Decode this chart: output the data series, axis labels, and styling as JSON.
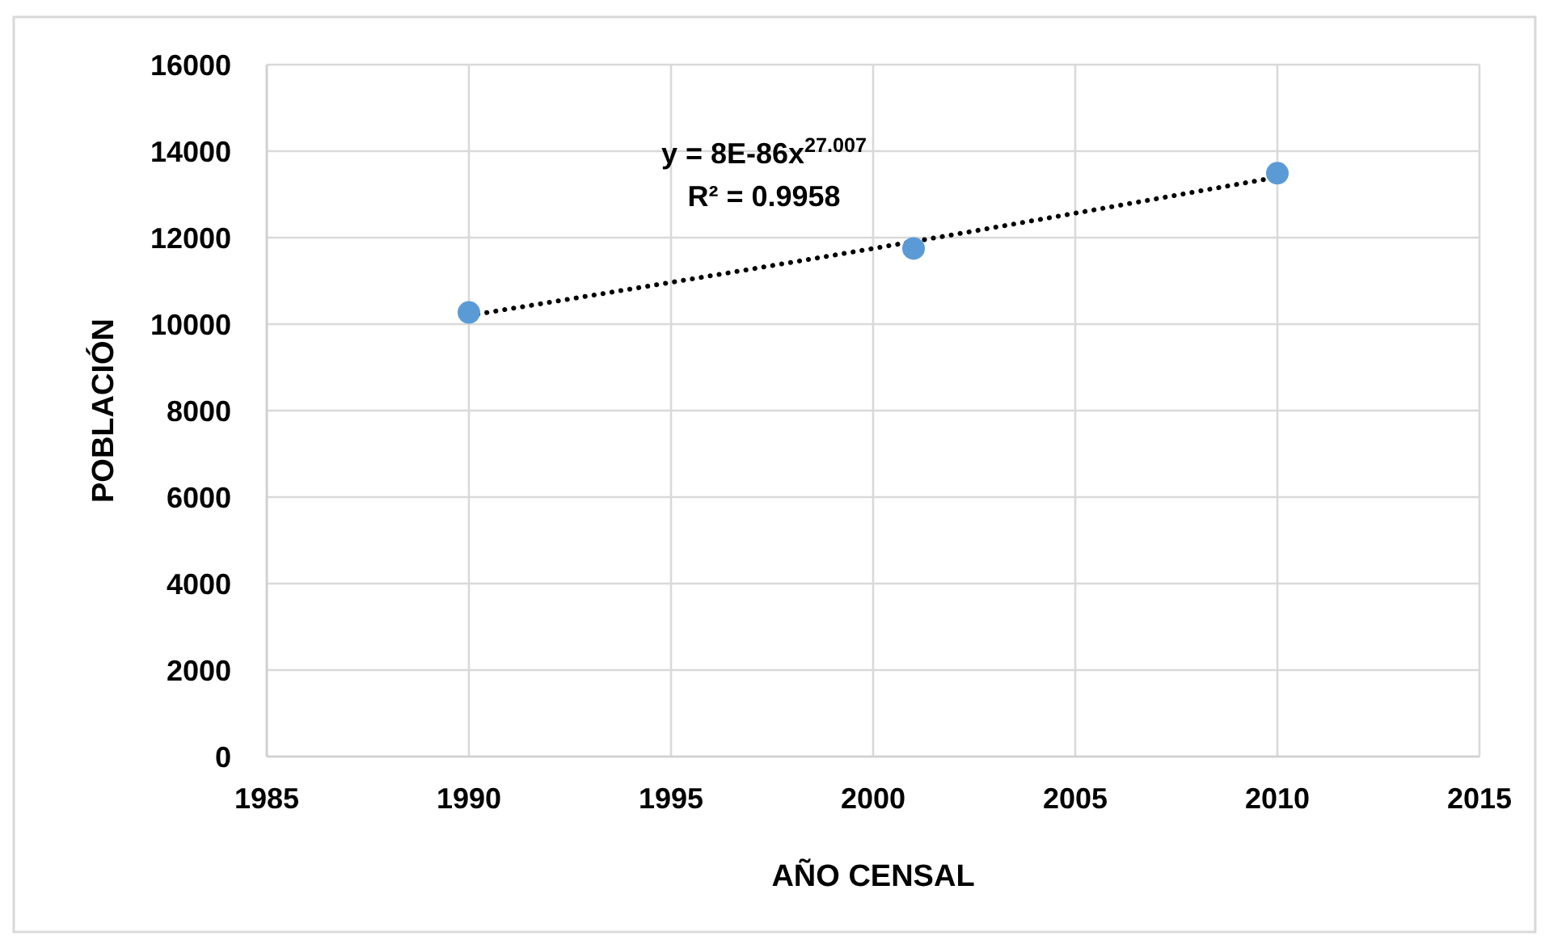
{
  "chart_data": {
    "type": "scatter",
    "xlabel": "AÑO CENSAL",
    "ylabel": "POBLACIÓN",
    "annotations": [
      "y = 8E-86x$^{27.007}$",
      "R² = 0.9958"
    ],
    "series": [
      {
        "color": "#5b9bd5",
        "marker": "circle",
        "x": [
          1990,
          2001,
          2010
        ],
        "values": [
          10270,
          11750,
          13490
        ]
      },
      {
        "type": "line",
        "color": "#000000",
        "marker": "none",
        "line_style": "dotted",
        "x": [
          1990,
          2000,
          2010
        ],
        "values": [
          10200,
          11750,
          13400
        ]
      }
    ],
    "xlim": [
      1985,
      2015
    ],
    "xticks": [
      1985,
      1990,
      1995,
      2000,
      2005,
      2010,
      2015
    ],
    "ylim": [
      0,
      16000
    ],
    "yticks": [
      0,
      2000,
      4000,
      6000,
      8000,
      10000,
      12000,
      14000,
      16000
    ],
    "grid": true
  }
}
